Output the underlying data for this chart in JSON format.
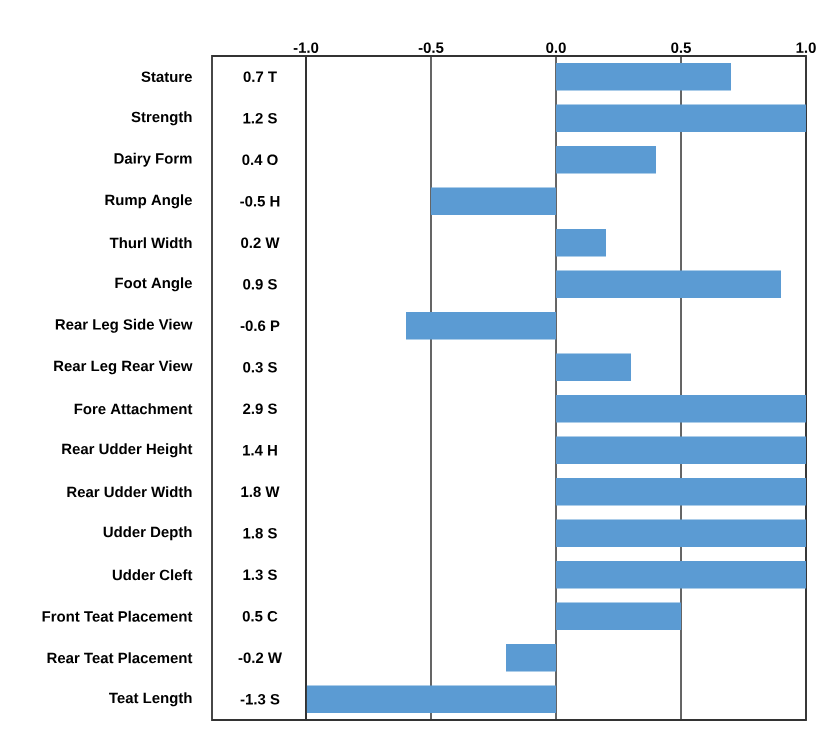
{
  "chart_data": {
    "type": "bar",
    "orientation": "horizontal",
    "categories": [
      "Stature",
      "Strength",
      "Dairy Form",
      "Rump Angle",
      "Thurl Width",
      "Foot Angle",
      "Rear Leg Side View",
      "Rear Leg Rear View",
      "Fore Attachment",
      "Rear Udder Height",
      "Rear Udder Width",
      "Udder Depth",
      "Udder Cleft",
      "Front Teat Placement",
      "Rear Teat Placement",
      "Teat Length"
    ],
    "values": [
      0.7,
      1.0,
      0.4,
      -0.5,
      0.2,
      0.9,
      -0.6,
      0.3,
      1.0,
      1.0,
      1.0,
      1.0,
      1.0,
      0.5,
      -0.2,
      -1.0
    ],
    "annotations": [
      "0.7 T",
      "1.2 S",
      "0.4 O",
      "-0.5 H",
      "0.2 W",
      "0.9 S",
      "-0.6 P",
      "0.3 S",
      "2.9 S",
      "1.4 H",
      "1.8 W",
      "1.8 S",
      "1.3 S",
      "0.5 C",
      "-0.2 W",
      "-1.3 S"
    ],
    "color": "#5b9bd3",
    "xlim": [
      -1.0,
      1.0
    ],
    "xticks": [
      {
        "value": -1.0,
        "label": "-1.0"
      },
      {
        "value": -0.5,
        "label": "-0.5"
      },
      {
        "value": 0.0,
        "label": "0.0"
      },
      {
        "value": 0.5,
        "label": "0.5"
      },
      {
        "value": 1.0,
        "label": "1.0"
      }
    ],
    "grid": "x"
  }
}
